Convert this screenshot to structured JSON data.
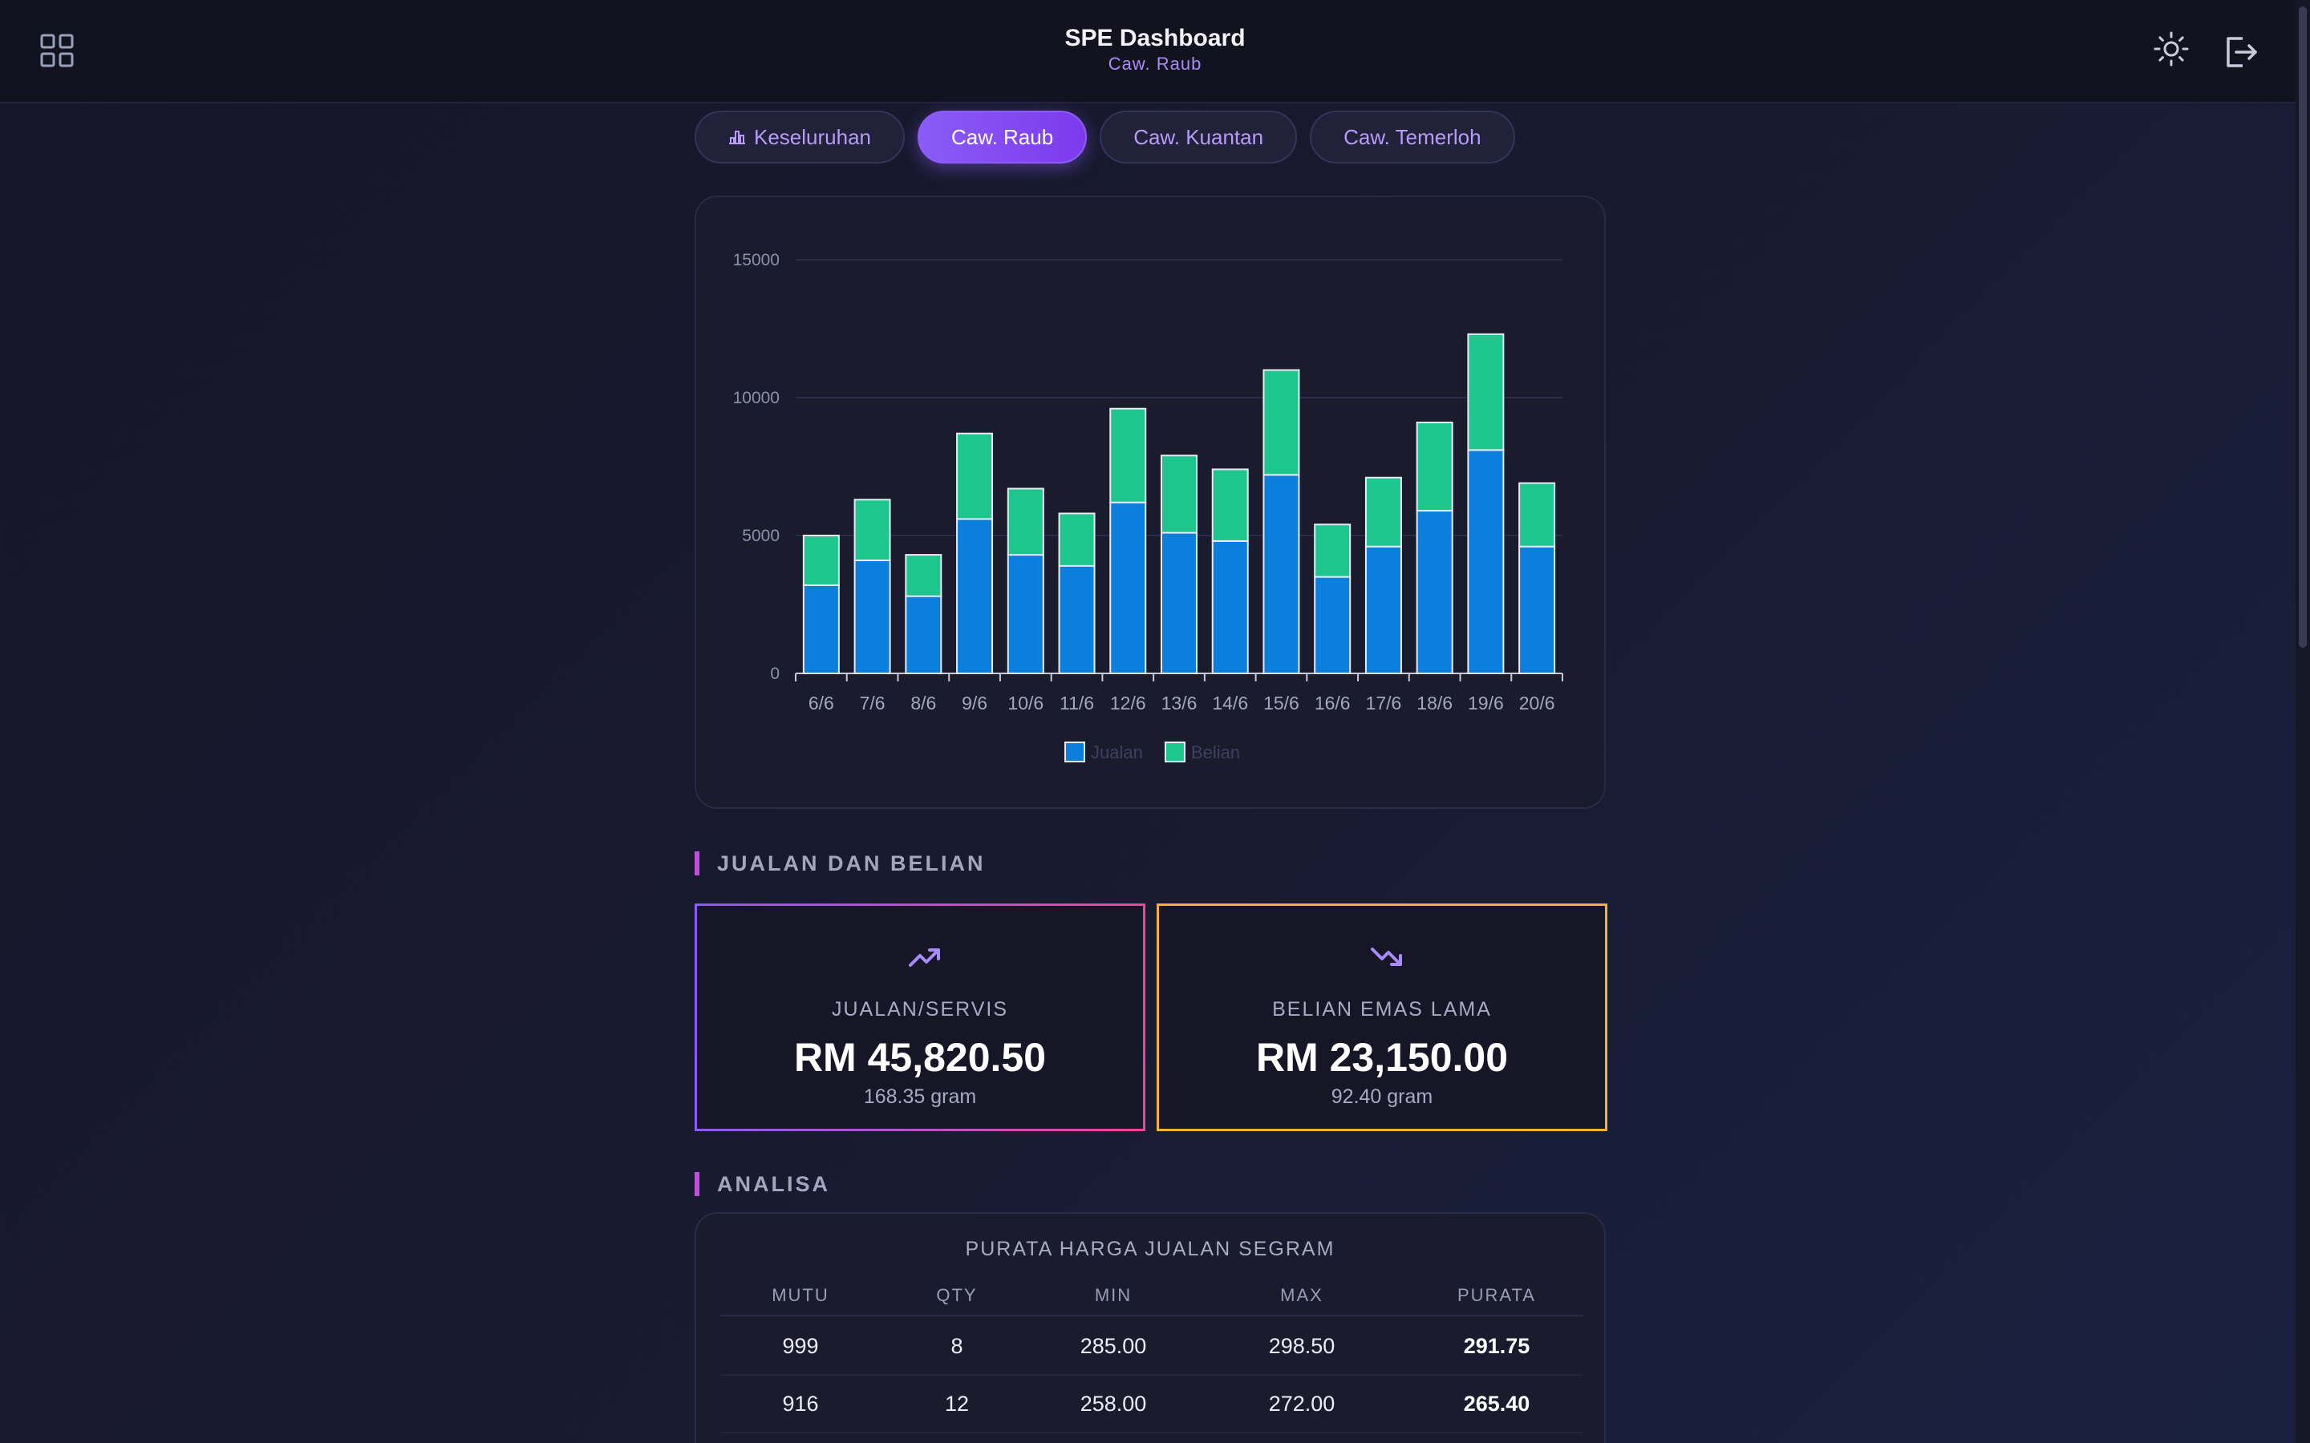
{
  "header": {
    "title": "SPE Dashboard",
    "subtitle": "Caw. Raub"
  },
  "tabs": [
    {
      "label": "Keseluruhan",
      "active": false,
      "icon": "bar-chart-icon"
    },
    {
      "label": "Caw. Raub",
      "active": true
    },
    {
      "label": "Caw. Kuantan",
      "active": false
    },
    {
      "label": "Caw. Temerloh",
      "active": false
    }
  ],
  "chart_data": {
    "type": "bar",
    "stacked": true,
    "categories": [
      "6/6",
      "7/6",
      "8/6",
      "9/6",
      "10/6",
      "11/6",
      "12/6",
      "13/6",
      "14/6",
      "15/6",
      "16/6",
      "17/6",
      "18/6",
      "19/6",
      "20/6"
    ],
    "series": [
      {
        "name": "Jualan",
        "color": "#0c7fdd",
        "values": [
          3200,
          4100,
          2800,
          5600,
          4300,
          3900,
          6200,
          5100,
          4800,
          7200,
          3500,
          4600,
          5900,
          8100,
          4600
        ]
      },
      {
        "name": "Belian",
        "color": "#1ec58c",
        "values": [
          1800,
          2200,
          1500,
          3100,
          2400,
          1900,
          3400,
          2800,
          2600,
          3800,
          1900,
          2500,
          3200,
          4200,
          2300
        ]
      }
    ],
    "yticks": [
      "0",
      "5000",
      "10000",
      "15000"
    ],
    "ylim": [
      0,
      15000
    ],
    "grid": true,
    "legend": "bottom-center"
  },
  "sections": {
    "sales": "JUALAN DAN BELIAN",
    "analysis": "ANALISA"
  },
  "stats": {
    "sales": {
      "label": "JUALAN/SERVIS",
      "value": "RM 45,820.50",
      "gram": "168.35 gram",
      "icon": "trending-up-icon"
    },
    "buy": {
      "label": "BELIAN EMAS LAMA",
      "value": "RM 23,150.00",
      "gram": "92.40 gram",
      "icon": "trending-down-icon"
    }
  },
  "analysis_table": {
    "title": "PURATA HARGA JUALAN SEGRAM",
    "columns": [
      "MUTU",
      "QTY",
      "MIN",
      "MAX",
      "PURATA"
    ],
    "rows": [
      [
        "999",
        "8",
        "285.00",
        "298.50",
        "291.75"
      ],
      [
        "916",
        "12",
        "258.00",
        "272.00",
        "265.40"
      ]
    ]
  },
  "colors": {
    "accent": "#8b5cf6",
    "jualan": "#0c7fdd",
    "belian": "#1ec58c",
    "orange": "#f5b13a"
  }
}
